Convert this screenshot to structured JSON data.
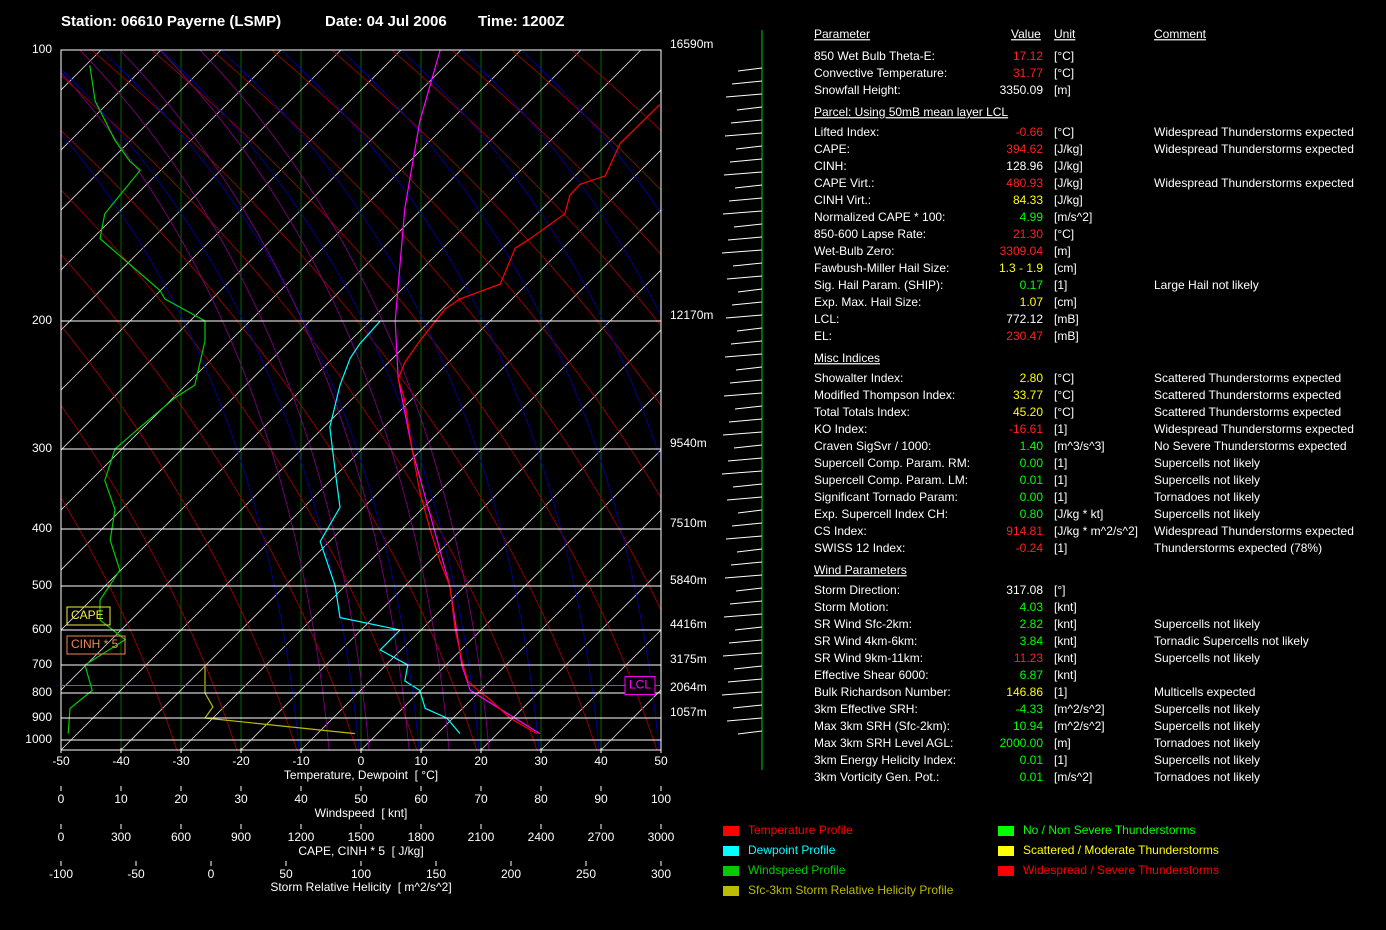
{
  "header": {
    "station": "Station: 06610 Payerne (LSMP)",
    "date": "Date: 04 Jul 2006",
    "time": "Time: 1200Z"
  },
  "chart_data": {
    "type": "skewt",
    "xlabel": "Temperature, Dewpoint  [ °C]",
    "xlim": [
      -50,
      50
    ],
    "xticks": [
      -50,
      -40,
      -30,
      -20,
      -10,
      0,
      10,
      20,
      30,
      40,
      50
    ],
    "pressure_ticks": [
      100,
      200,
      300,
      400,
      500,
      600,
      700,
      800,
      900,
      1000
    ],
    "height_labels": [
      "16590m",
      "12170m",
      "9540m",
      "7510m",
      "5840m",
      "4416m",
      "3175m",
      "2064m",
      "1057m"
    ],
    "wind_axis": {
      "label": "Windspeed  [ knt]",
      "lim": [
        0,
        100
      ],
      "ticks": [
        0,
        10,
        20,
        30,
        40,
        50,
        60,
        70,
        80,
        90,
        100
      ]
    },
    "cape_axis": {
      "label": "CAPE, CINH * 5  [ J/kg]",
      "lim": [
        0,
        3000
      ],
      "ticks": [
        0,
        300,
        600,
        900,
        1200,
        1500,
        1800,
        2100,
        2400,
        2700,
        3000
      ]
    },
    "srh_axis": {
      "label": "Storm Relative Helicity  [ m^2/s^2]",
      "lim": [
        -100,
        300
      ],
      "ticks": [
        -100,
        -50,
        0,
        50,
        100,
        150,
        200,
        250,
        300
      ]
    },
    "series": [
      {
        "name": "Temperature Profile",
        "color": "#ff0000",
        "pressure": [
          970,
          900,
          825,
          790,
          755,
          700,
          600,
          500,
          455,
          400,
          350,
          300,
          255,
          240,
          228,
          213,
          194,
          189,
          182,
          166,
          162,
          152,
          145,
          141,
          138,
          127,
          115
        ],
        "values": [
          29.3,
          24.8,
          21.5,
          19.5,
          17.8,
          17,
          15.7,
          14.8,
          13.2,
          11.5,
          9.8,
          8.5,
          7.2,
          6.2,
          7.3,
          9.8,
          14,
          16.5,
          23.2,
          25.7,
          28.2,
          34,
          34.8,
          36.5,
          40.7,
          43.2,
          49.8
        ]
      },
      {
        "name": "Dewpoint Profile",
        "color": "#00ffff",
        "pressure": [
          970,
          900,
          860,
          790,
          755,
          700,
          655,
          600,
          570,
          500,
          470,
          420,
          370,
          325,
          280,
          245,
          225,
          215,
          200
        ],
        "values": [
          16.5,
          14.3,
          10.7,
          9.8,
          7.3,
          7.8,
          3.2,
          6.5,
          -3.5,
          -4.3,
          -5.2,
          -6.8,
          -3.5,
          -4.3,
          -5.2,
          -3.5,
          -1.8,
          -0.2,
          3.2
        ]
      },
      {
        "name": "Windspeed Profile",
        "color": "#00cc00",
        "axis": "wind",
        "pressure": [
          970,
          860,
          790,
          700,
          626,
          576,
          530,
          470,
          418,
          373,
          336,
          300,
          280,
          255,
          245,
          213,
          200,
          189,
          185,
          162,
          152,
          145,
          136,
          133,
          126,
          114,
          104
        ],
        "values": [
          1.2,
          1.5,
          5.2,
          4,
          10.7,
          6.5,
          6.5,
          9.8,
          8.2,
          9,
          7.3,
          9,
          13.2,
          19,
          22.3,
          24,
          24,
          17.3,
          16.5,
          6.5,
          7.3,
          9.8,
          13.2,
          11.5,
          9,
          5.7,
          4.8
        ]
      },
      {
        "name": "Sfc-3km Storm Relative Helicity Profile",
        "color": "#bbbb00",
        "axis": "srh",
        "pressure": [
          700,
          800,
          854,
          900,
          970
        ],
        "values": [
          -4,
          -4,
          1.3,
          -4,
          96
        ]
      }
    ],
    "parcel": {
      "color": "#ff00ff",
      "pressure": [
        970,
        790,
        700,
        500,
        300,
        240,
        200,
        150,
        120,
        100
      ],
      "values": [
        29.8,
        18.2,
        16.8,
        14.8,
        8.5,
        6.2,
        5.7,
        7.3,
        9.8,
        13.2
      ]
    },
    "lcl": {
      "label": "LCL",
      "pressure": 772.12
    },
    "annotations": [
      "CAPE",
      "CINH * 5"
    ]
  },
  "table": {
    "columns": [
      "Parameter",
      "Value",
      "Unit",
      "Comment"
    ],
    "groups": [
      {
        "rows": [
          {
            "label": "850 Wet Bulb Theta-E:",
            "value": "17.12",
            "unit": "[°C]",
            "color": "red"
          },
          {
            "label": "Convective Temperature:",
            "value": "31.77",
            "unit": "[°C]",
            "color": "red"
          },
          {
            "label": "Snowfall Height:",
            "value": "3350.09",
            "unit": "[m]",
            "color": "white"
          }
        ]
      },
      {
        "title": "Parcel: Using 50mB mean layer LCL",
        "rows": [
          {
            "label": "Lifted Index:",
            "value": "-0.66",
            "unit": "[°C]",
            "comment": "Widespread Thunderstorms expected",
            "color": "red"
          },
          {
            "label": "CAPE:",
            "value": "394.62",
            "unit": "[J/kg]",
            "comment": "Widespread Thunderstorms expected",
            "color": "red"
          },
          {
            "label": "CINH:",
            "value": "128.96",
            "unit": "[J/kg]",
            "color": "white"
          },
          {
            "label": "CAPE Virt.:",
            "value": "480.93",
            "unit": "[J/kg]",
            "comment": "Widespread Thunderstorms expected",
            "color": "red"
          },
          {
            "label": "CINH Virt.:",
            "value": "84.33",
            "unit": "[J/kg]",
            "color": "yellow"
          },
          {
            "label": "Normalized CAPE * 100:",
            "value": "4.99",
            "unit": "[m/s^2]",
            "color": "green"
          },
          {
            "label": "850-600 Lapse Rate:",
            "value": "21.30",
            "unit": "[°C]",
            "color": "red"
          },
          {
            "label": "Wet-Bulb Zero:",
            "value": "3309.04",
            "unit": "[m]",
            "color": "red"
          },
          {
            "label": "Fawbush-Miller Hail Size:",
            "value": "1.3 - 1.9",
            "unit": "[cm]",
            "color": "yellow"
          },
          {
            "label": "Sig. Hail Param. (SHIP):",
            "value": "0.17",
            "unit": "[1]",
            "comment": "Large Hail not likely",
            "color": "green"
          },
          {
            "label": "Exp. Max. Hail Size:",
            "value": "1.07",
            "unit": "[cm]",
            "color": "yellow"
          },
          {
            "label": "LCL:",
            "value": "772.12",
            "unit": "[mB]",
            "color": "white"
          },
          {
            "label": "EL:",
            "value": "230.47",
            "unit": "[mB]",
            "color": "red"
          }
        ]
      },
      {
        "title": "Misc Indices",
        "rows": [
          {
            "label": "Showalter Index:",
            "value": "2.80",
            "unit": "[°C]",
            "comment": "Scattered Thunderstorms expected",
            "color": "yellow"
          },
          {
            "label": "Modified Thompson Index:",
            "value": "33.77",
            "unit": "[°C]",
            "comment": "Scattered Thunderstorms expected",
            "color": "yellow"
          },
          {
            "label": "Total Totals Index:",
            "value": "45.20",
            "unit": "[°C]",
            "comment": "Scattered Thunderstorms expected",
            "color": "yellow"
          },
          {
            "label": "KO Index:",
            "value": "-16.61",
            "unit": "[1]",
            "comment": "Widespread Thunderstorms expected",
            "color": "red"
          },
          {
            "label": "Craven SigSvr / 1000:",
            "value": "1.40",
            "unit": "[m^3/s^3]",
            "comment": "No Severe Thunderstorms expected",
            "color": "green"
          },
          {
            "label": "Supercell Comp. Param. RM:",
            "value": "0.00",
            "unit": "[1]",
            "comment": "Supercells not likely",
            "color": "green"
          },
          {
            "label": "Supercell Comp. Param. LM:",
            "value": "0.01",
            "unit": "[1]",
            "comment": "Supercells not likely",
            "color": "green"
          },
          {
            "label": "Significant Tornado Param:",
            "value": "0.00",
            "unit": "[1]",
            "comment": "Tornadoes not likely",
            "color": "green"
          },
          {
            "label": "Exp. Supercell Index CH:",
            "value": "0.80",
            "unit": "[J/kg * kt]",
            "comment": "Supercells not likely",
            "color": "green"
          },
          {
            "label": "CS Index:",
            "value": "914.81",
            "unit": "[J/kg * m^2/s^2]",
            "comment": "Widespread Thunderstorms expected",
            "color": "red"
          },
          {
            "label": "SWISS 12 Index:",
            "value": "-0.24",
            "unit": "[1]",
            "comment": "Thunderstorms expected (78%)",
            "color": "red"
          }
        ]
      },
      {
        "title": "Wind Parameters",
        "rows": [
          {
            "label": "Storm Direction:",
            "value": "317.08",
            "unit": "[°]",
            "color": "white"
          },
          {
            "label": "Storm Motion:",
            "value": "4.03",
            "unit": "[knt]",
            "color": "green"
          },
          {
            "label": "SR Wind Sfc-2km:",
            "value": "2.82",
            "unit": "[knt]",
            "comment": "Supercells not likely",
            "color": "green"
          },
          {
            "label": "SR Wind 4km-6km:",
            "value": "3.84",
            "unit": "[knt]",
            "comment": "Tornadic Supercells not likely",
            "color": "green"
          },
          {
            "label": "SR Wind 9km-11km:",
            "value": "11.23",
            "unit": "[knt]",
            "comment": "Supercells not likely",
            "color": "red"
          },
          {
            "label": "Effective Shear 6000:",
            "value": "6.87",
            "unit": "[knt]",
            "color": "green"
          },
          {
            "label": "Bulk Richardson Number:",
            "value": "146.86",
            "unit": "[1]",
            "comment": "Multicells expected",
            "color": "yellow"
          },
          {
            "label": "3km Effective SRH:",
            "value": "-4.33",
            "unit": "[m^2/s^2]",
            "comment": "Supercells not likely",
            "color": "green"
          },
          {
            "label": "Max 3km SRH (Sfc-2km):",
            "value": "10.94",
            "unit": "[m^2/s^2]",
            "comment": "Supercells not likely",
            "color": "green"
          },
          {
            "label": "Max 3km SRH Level AGL:",
            "value": "2000.00",
            "unit": "[m]",
            "comment": "Tornadoes not likely",
            "color": "green"
          },
          {
            "label": "3km Energy Helicity Index:",
            "value": "0.01",
            "unit": "[1]",
            "comment": "Supercells not likely",
            "color": "green"
          },
          {
            "label": "3km Vorticity Gen. Pot.:",
            "value": "0.01",
            "unit": "[m/s^2]",
            "comment": "Tornadoes not likely",
            "color": "green"
          }
        ]
      }
    ]
  },
  "legend": [
    {
      "label": "No / Non Severe Thunderstorms",
      "color": "#00ff00"
    },
    {
      "label": "Scattered / Moderate Thunderstorms",
      "color": "#ffff00"
    },
    {
      "label": "Widespread / Severe Thunderstorms",
      "color": "#ff0000"
    }
  ]
}
